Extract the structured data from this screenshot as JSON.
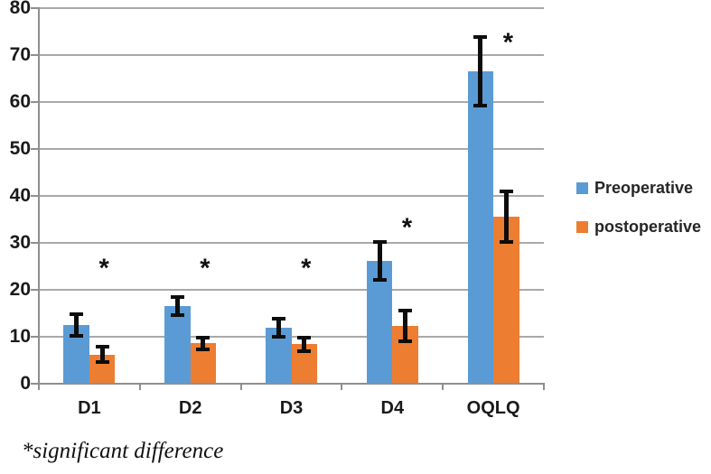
{
  "chart_data": {
    "type": "bar",
    "title": "",
    "xlabel": "",
    "ylabel": "",
    "categories": [
      "D1",
      "D2",
      "D3",
      "D4",
      "OQLQ"
    ],
    "series": [
      {
        "name": "Preoperative",
        "color": "#5B9BD5",
        "values": [
          12.5,
          16.5,
          11.9,
          26.2,
          66.5
        ],
        "errors": [
          2.3,
          1.9,
          1.9,
          4.0,
          7.3
        ]
      },
      {
        "name": "postoperative",
        "color": "#ED7D31",
        "values": [
          6.2,
          8.6,
          8.4,
          12.3,
          35.6
        ],
        "errors": [
          1.6,
          1.3,
          1.5,
          3.2,
          5.4
        ]
      }
    ],
    "ylim": [
      0,
      80
    ],
    "ytick_labels": [
      "0",
      "10",
      "20",
      "30",
      "40",
      "50",
      "60",
      "70",
      "80"
    ],
    "grid": true,
    "legend_position": "right",
    "error_bar_color": "#0d0d0d",
    "annotations": [
      {
        "category": "D1",
        "symbol": "*",
        "value": 25.4
      },
      {
        "category": "D2",
        "symbol": "*",
        "value": 25.4
      },
      {
        "category": "D3",
        "symbol": "*",
        "value": 25.4
      },
      {
        "category": "D4",
        "symbol": "*",
        "value": 34.0
      },
      {
        "category": "OQLQ",
        "symbol": "*",
        "value": 73.5
      }
    ],
    "footnote": "*significant difference"
  }
}
